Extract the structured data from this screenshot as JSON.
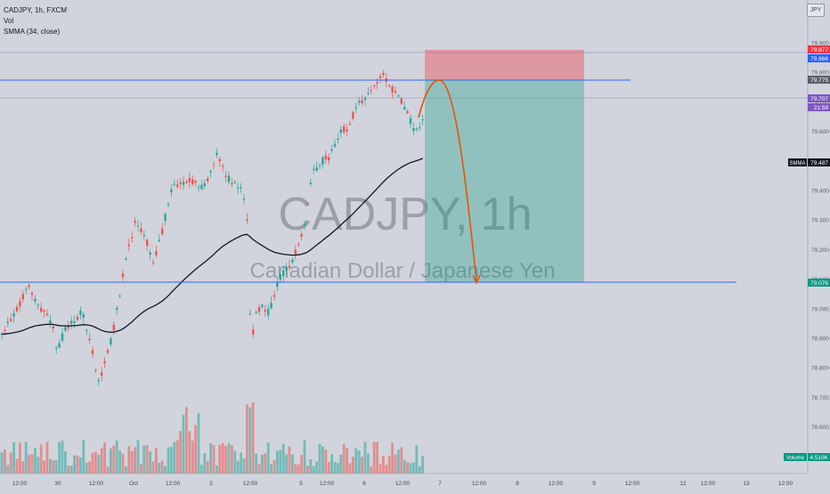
{
  "header": {
    "symbol_line": "CADJPY, 1h, FXCM",
    "vol_label": "Vol",
    "smma_label": "SMMA (34, close)",
    "currency_button": "JPY"
  },
  "watermark": {
    "symbol": "CADJPY, 1h",
    "description": "Canadian Dollar / Japanese Yen"
  },
  "price_axis": {
    "ticks": [
      "79.900",
      "79.800",
      "79.700",
      "79.600",
      "79.500",
      "79.400",
      "79.300",
      "79.200",
      "79.100",
      "79.000",
      "78.900",
      "78.800",
      "78.700",
      "78.600",
      "78.500"
    ]
  },
  "price_labels": {
    "stop": "79.877",
    "line_blue": "79.866",
    "current": "79.775",
    "last_price": "79.707",
    "countdown": "21:59",
    "smma_name": "SMMA",
    "smma_value": "79.487",
    "target": "79.076",
    "volume_name": "Volume",
    "volume_value": "4.519K"
  },
  "time_axis": {
    "ticks": [
      "12:00",
      "30",
      "12:00",
      "Oct",
      "12:00",
      "2",
      "12:00",
      "5",
      "12:00",
      "6",
      "12:00",
      "7",
      "12:00",
      "8",
      "12:00",
      "9",
      "12:00",
      "12",
      "12:00",
      "13",
      "12:00"
    ]
  },
  "colors": {
    "background": "#d1d4dc",
    "up_candle": "#26a69a",
    "down_candle": "#ef5350",
    "smma_line": "#131722",
    "hline": "#2962ff",
    "stop_zone": "#f23645",
    "target_zone": "#089981",
    "projection": "#e8520f",
    "label_red": "#f23645",
    "label_blue": "#2962ff",
    "label_gray": "#5d606b",
    "label_purple": "#7e57c2",
    "label_black": "#131722",
    "label_green": "#089981"
  }
}
